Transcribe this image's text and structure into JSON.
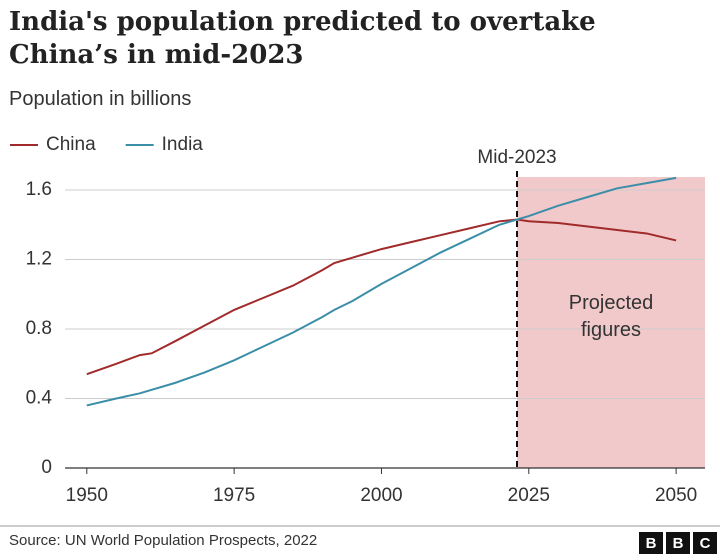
{
  "chart_data": {
    "type": "line",
    "title": "India's population predicted to overtake China’s in mid-2023",
    "subtitle": "Population in billions",
    "x": [
      1950,
      1955,
      1959,
      1961,
      1965,
      1970,
      1975,
      1980,
      1985,
      1990,
      1992,
      1995,
      2000,
      2005,
      2010,
      2015,
      2020,
      2023,
      2025,
      2030,
      2035,
      2040,
      2045,
      2050
    ],
    "series": [
      {
        "name": "China",
        "color": "#a12a2a",
        "values": [
          0.54,
          0.6,
          0.65,
          0.66,
          0.73,
          0.82,
          0.91,
          0.98,
          1.05,
          1.14,
          1.18,
          1.21,
          1.26,
          1.3,
          1.34,
          1.38,
          1.42,
          1.43,
          1.42,
          1.41,
          1.39,
          1.37,
          1.35,
          1.31
        ]
      },
      {
        "name": "India",
        "color": "#3b8ea8",
        "values": [
          0.36,
          0.4,
          0.43,
          0.45,
          0.49,
          0.55,
          0.62,
          0.7,
          0.78,
          0.87,
          0.91,
          0.96,
          1.06,
          1.15,
          1.24,
          1.32,
          1.4,
          1.43,
          1.45,
          1.51,
          1.56,
          1.61,
          1.64,
          1.67
        ]
      }
    ],
    "xlim": [
      1946.3,
      2054.9
    ],
    "ylim": [
      0,
      1.675
    ],
    "xticks": [
      1950,
      1975,
      2000,
      2025,
      2050
    ],
    "yticks": [
      0,
      0.4,
      0.8,
      1.2,
      1.6
    ],
    "grid": true,
    "projection": {
      "start": 2023,
      "label": "Mid-2023",
      "text": "Projected figures",
      "color": "#f2c9cb"
    },
    "source": "Source: UN World Population Prospects, 2022",
    "logo": [
      "B",
      "B",
      "C"
    ]
  }
}
